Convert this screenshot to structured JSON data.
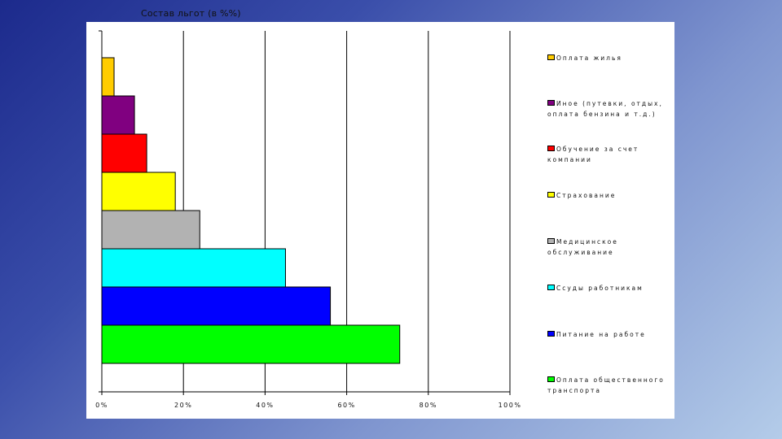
{
  "chart_data": {
    "type": "bar",
    "orientation": "horizontal",
    "title": "Состав льгот (в %%)",
    "xlim": [
      0,
      100
    ],
    "x_ticks": [
      "0%",
      "20%",
      "40%",
      "60%",
      "80%",
      "100%"
    ],
    "grid": "vertical",
    "legend_position": "right",
    "bars": [
      {
        "label": "Оплата общественного транспорта",
        "value": 73,
        "color": "#00ff00"
      },
      {
        "label": "Питание на работе",
        "value": 56,
        "color": "#0000ff"
      },
      {
        "label": "Ссуды работникам",
        "value": 45,
        "color": "#00ffff"
      },
      {
        "label": "Медицинское обслуживание",
        "value": 24,
        "color": "#b2b2b2"
      },
      {
        "label": "Страхование",
        "value": 18,
        "color": "#ffff00"
      },
      {
        "label": "Обучение за счет компании",
        "value": 11,
        "color": "#ff0000"
      },
      {
        "label": "Иное (путевки, отдых, оплата бензина и т.д.)",
        "value": 8,
        "color": "#800080"
      },
      {
        "label": "Оплата жилья",
        "value": 3,
        "color": "#ffcc00"
      }
    ]
  }
}
